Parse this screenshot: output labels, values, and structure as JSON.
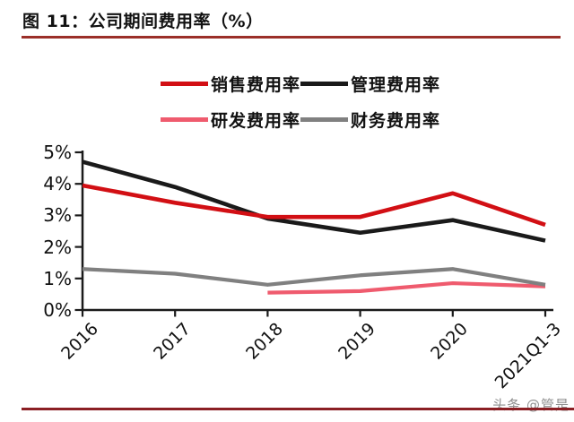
{
  "title": "图 11：公司期间费用率（%）",
  "watermark": "头条 @管是",
  "colors": {
    "sales": "#d20f14",
    "admin": "#1a1a1a",
    "rnd": "#ef5b6e",
    "finance": "#808080",
    "axis": "#1a1a1a",
    "title_rule": "#9b2f29",
    "bottom_rule": "#8b1f24"
  },
  "chart_data": {
    "type": "line",
    "title": "公司期间费用率（%）",
    "categories": [
      "2016",
      "2017",
      "2018",
      "2019",
      "2020",
      "2021Q1-3"
    ],
    "series": [
      {
        "key": "sales",
        "name": "销售费用率",
        "values": [
          3.95,
          3.4,
          2.95,
          2.95,
          3.7,
          2.7
        ]
      },
      {
        "key": "admin",
        "name": "管理费用率",
        "values": [
          4.7,
          3.9,
          2.9,
          2.45,
          2.85,
          2.2
        ]
      },
      {
        "key": "rnd",
        "name": "研发费用率",
        "values": [
          null,
          null,
          0.55,
          0.6,
          0.85,
          0.75
        ]
      },
      {
        "key": "finance",
        "name": "财务费用率",
        "values": [
          1.3,
          1.15,
          0.8,
          1.1,
          1.3,
          0.8
        ]
      }
    ],
    "xlabel": "",
    "ylabel": "",
    "y_ticks": [
      "5%",
      "4%",
      "3%",
      "2%",
      "1%",
      "0%"
    ],
    "ylim": [
      0,
      5
    ],
    "grid": false,
    "legend_position": "top"
  }
}
